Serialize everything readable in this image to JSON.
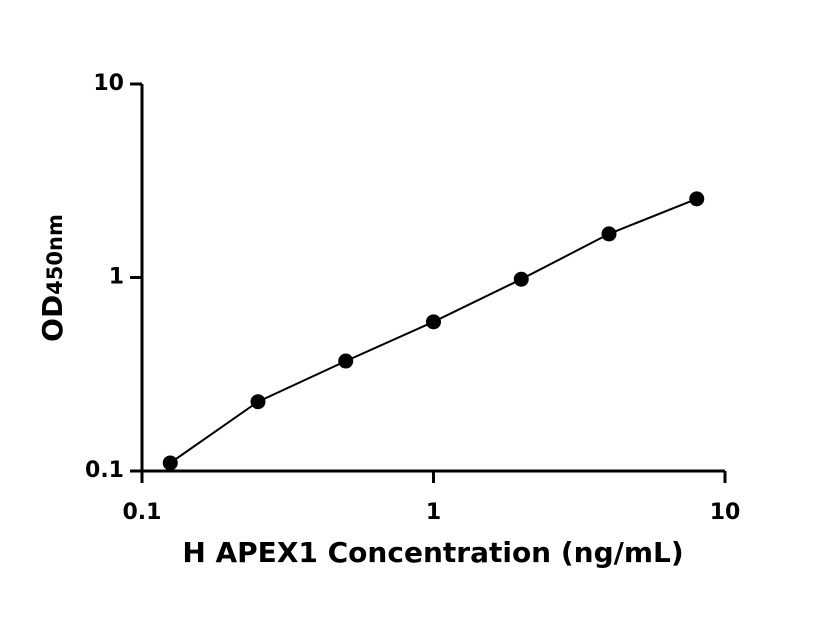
{
  "chart_data": {
    "type": "scatter",
    "x_label": "H APEX1 Concentration (ng/mL)",
    "y_label": "OD",
    "y_label_sub": "450nm",
    "x": [
      0.125,
      0.25,
      0.5,
      1,
      2,
      4,
      8
    ],
    "series": [
      {
        "values": [
          0.11,
          0.228,
          0.37,
          0.59,
          0.98,
          1.68,
          2.55
        ],
        "color": "#000000"
      }
    ],
    "xlim": [
      0.1,
      10
    ],
    "ylim": [
      0.1,
      10
    ],
    "xticks": [
      0.1,
      1,
      10
    ],
    "yticks": [
      0.1,
      1,
      10
    ],
    "log_x": true,
    "log_y": true,
    "fit_line": true
  }
}
